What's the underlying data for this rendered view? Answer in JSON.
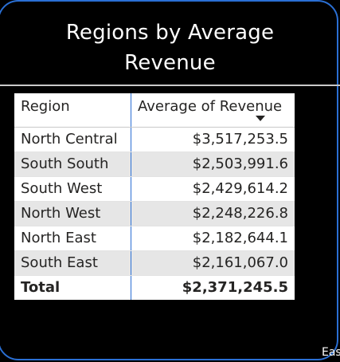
{
  "visual": {
    "title_line1": "Regions by Average",
    "title_line2": "Revenue"
  },
  "table": {
    "columns": [
      "Region",
      "Average of Revenue"
    ],
    "sort_column": "Average of Revenue",
    "sort_direction": "descending",
    "rows": [
      {
        "region": "North Central",
        "value": "$3,517,253.5"
      },
      {
        "region": "South South",
        "value": "$2,503,991.6"
      },
      {
        "region": "South West",
        "value": "$2,429,614.2"
      },
      {
        "region": "North West",
        "value": "$2,248,226.8"
      },
      {
        "region": "North East",
        "value": "$2,182,644.1"
      },
      {
        "region": "South East",
        "value": "$2,161,067.0"
      }
    ],
    "total": {
      "label": "Total",
      "value": "$2,371,245.5"
    }
  },
  "cut_off_text": "Eas",
  "colors": {
    "background": "#000000",
    "accent_border": "#2a6fd4",
    "alt_row": "#e6e6e6",
    "text": "#252423"
  }
}
